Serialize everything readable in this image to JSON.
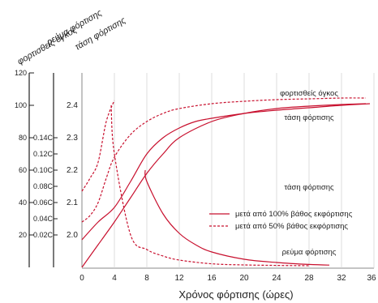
{
  "chart_data": {
    "type": "line",
    "xlabel": "Χρόνος φόρτισης (ώρες)",
    "xlim": [
      0,
      36
    ],
    "x_ticks": [
      "0",
      "4",
      "8",
      "12",
      "16",
      "20",
      "24",
      "28",
      "32",
      "36"
    ],
    "axes": {
      "charged_volume": {
        "label": "φορτισθείς όγκος",
        "range": [
          0,
          120
        ],
        "ticks": [
          "20",
          "40",
          "60",
          "80",
          "100",
          "120"
        ]
      },
      "charge_current": {
        "label": "ρεύμα φόρτισης",
        "ticks": [
          "0.02C",
          "0.04C",
          "0.06C",
          "0.08C",
          "0.10C",
          "0.12C",
          "0.14C"
        ]
      },
      "charge_voltage": {
        "label": "τάση φόρτισης",
        "range": [
          1.85,
          2.5
        ],
        "ticks": [
          "2.0",
          "2.1",
          "2.2",
          "2.3",
          "2.4"
        ]
      }
    },
    "legend": {
      "placement": "right-center",
      "entries": [
        {
          "label": "μετά από 100% βάθος εκφόρτισης",
          "style": "solid"
        },
        {
          "label": "μετά από 50% βάθος εκφόρτισης",
          "style": "dashed"
        }
      ]
    },
    "annotations": [
      {
        "text": "φορτισθείς όγκος",
        "x": 28,
        "y_volume": 106
      },
      {
        "text": "τάση φόρτισης",
        "x": 28,
        "y_volume": 91
      },
      {
        "text": "τάση φόρτισης",
        "x": 28,
        "y_volume": 48
      },
      {
        "text": "ρεύμα φόρτισης",
        "x": 28,
        "y_volume": 8
      }
    ],
    "series": [
      {
        "label": "φορτισθείς όγκος",
        "depth": "100%",
        "style": "solid",
        "x": [
          0,
          2,
          4,
          6,
          8,
          10,
          12,
          16,
          20,
          24,
          28,
          32,
          35
        ],
        "y_volume": [
          0,
          14,
          28,
          43,
          58,
          70,
          80,
          90,
          95,
          98,
          99.5,
          100.5,
          101
        ]
      },
      {
        "label": "φορτισθείς όγκος",
        "depth": "50%",
        "style": "dashed",
        "x": [
          0,
          1,
          2,
          3,
          4,
          6,
          8,
          10,
          12,
          16,
          20,
          24,
          28,
          32,
          35
        ],
        "y_volume": [
          28,
          32,
          40,
          55,
          68,
          82,
          90,
          95,
          98,
          101,
          102.5,
          103.5,
          104,
          104.5,
          104.5
        ]
      },
      {
        "label": "τάση φόρτισης",
        "depth": "100%",
        "style": "solid",
        "x": [
          0,
          2,
          4,
          6,
          8,
          10,
          12,
          14,
          16,
          20,
          24,
          28,
          32,
          35.5
        ],
        "y_volume": [
          17,
          28,
          37,
          53,
          70,
          80,
          86,
          90,
          92,
          95,
          97,
          98.5,
          100,
          101
        ]
      },
      {
        "label": "τάση φόρτισης",
        "depth": "50%",
        "style": "dashed",
        "x": [
          0,
          1,
          2,
          3,
          4
        ],
        "y_volume": [
          47,
          55,
          65,
          90,
          103
        ]
      },
      {
        "label": "ρεύμα φόρτισης",
        "depth": "100%",
        "style": "solid",
        "x": [
          7.8,
          8,
          10,
          12,
          14,
          16,
          20,
          24,
          28,
          30.5
        ],
        "y_volume": [
          60,
          53,
          33,
          21,
          14,
          9.5,
          5,
          3,
          1.8,
          1.4
        ]
      },
      {
        "label": "ρεύμα φόρτισης",
        "depth": "50%",
        "style": "dashed",
        "x": [
          3.6,
          4,
          6,
          8,
          10,
          12,
          16,
          20,
          24,
          28
        ],
        "y_volume": [
          100,
          70,
          20,
          11,
          7,
          4.5,
          2.2,
          1.5,
          1.2,
          1
        ]
      }
    ]
  }
}
